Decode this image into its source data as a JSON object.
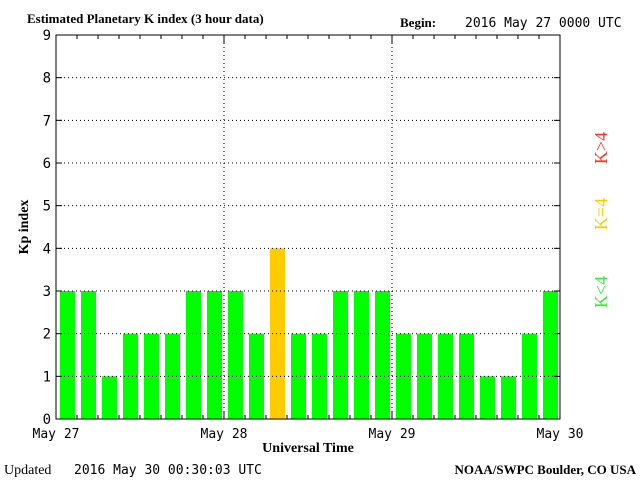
{
  "header": {
    "title": "Estimated Planetary K index (3 hour data)",
    "begin_label": "Begin:",
    "begin_value": "2016 May 27 0000 UTC"
  },
  "footer": {
    "updated_label": "Updated",
    "updated_value": "2016 May 30 00:30:03 UTC",
    "source": "NOAA/SWPC Boulder, CO USA"
  },
  "legend": {
    "items": [
      {
        "text": "K<4",
        "color": "#33ee33"
      },
      {
        "text": "K=4",
        "color": "#ffcc00"
      },
      {
        "text": "K>4",
        "color": "#ff3322"
      }
    ]
  },
  "colors": {
    "below4": "#00ff00",
    "equal4": "#ffcc00",
    "above4": "#ff0000"
  },
  "chart_data": {
    "type": "bar",
    "title": "Estimated Planetary K index (3 hour data)",
    "xlabel": "Universal Time",
    "ylabel": "Kp index",
    "ylim": [
      0,
      9
    ],
    "yticks": [
      "0",
      "1",
      "2",
      "3",
      "4",
      "5",
      "6",
      "7",
      "8",
      "9"
    ],
    "xticks": [
      "May 27",
      "May 28",
      "May 29",
      "May 30"
    ],
    "days": 3,
    "bins_per_day": 8,
    "grid": "dotted",
    "values": [
      3,
      3,
      1,
      2,
      2,
      2,
      3,
      3,
      3,
      2,
      4,
      2,
      2,
      3,
      3,
      3,
      2,
      2,
      2,
      2,
      1,
      1,
      2,
      3
    ]
  }
}
